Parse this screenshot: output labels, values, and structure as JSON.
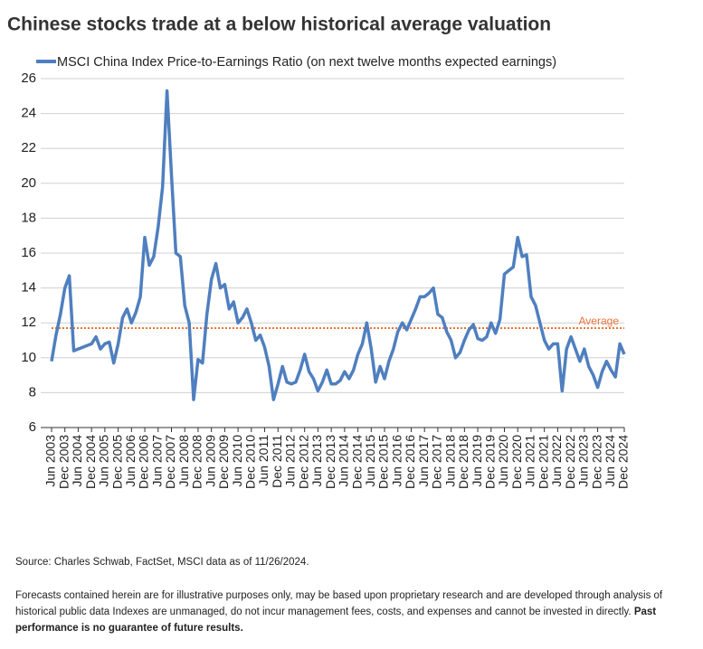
{
  "chart_data": {
    "type": "line",
    "title": "Chinese stocks trade at a below historical average valuation",
    "categories": [
      "Jun 2003",
      null,
      null,
      "Dec 2003",
      null,
      null,
      "Jun 2004",
      null,
      null,
      "Dec 2004",
      null,
      null,
      "Jun 2005",
      null,
      null,
      "Dec 2005",
      null,
      null,
      "Jun 2006",
      null,
      null,
      "Dec 2006",
      null,
      null,
      "Jun 2007",
      null,
      null,
      "Dec 2007",
      null,
      null,
      "Jun 2008",
      null,
      null,
      "Dec 2008",
      null,
      null,
      "Jun 2009",
      null,
      null,
      "Dec 2009",
      null,
      null,
      "Jun 2010",
      null,
      null,
      "Dec 2010",
      null,
      null,
      "Jun 2011",
      null,
      null,
      "Dec 2011",
      null,
      null,
      "Jun 2012",
      null,
      null,
      "Dec 2012",
      null,
      null,
      "Jun 2013",
      null,
      null,
      "Dec 2013",
      null,
      null,
      "Jun 2014",
      null,
      null,
      "Dec 2014",
      null,
      null,
      "Jun 2015",
      null,
      null,
      "Dec 2015",
      null,
      null,
      "Jun 2016",
      null,
      null,
      "Dec 2016",
      null,
      null,
      "Jun 2017",
      null,
      null,
      "Dec 2017",
      null,
      null,
      "Jun 2018",
      null,
      null,
      "Dec 2018",
      null,
      null,
      "Jun 2019",
      null,
      null,
      "Dec 2019",
      null,
      null,
      "Jun 2020",
      null,
      null,
      "Dec 2020",
      null,
      null,
      "Jun 2021",
      null,
      null,
      "Dec 2021",
      null,
      null,
      "Jun 2022",
      null,
      null,
      "Dec 2022",
      null,
      null,
      "Jun 2023",
      null,
      null,
      "Dec 2023",
      null,
      null,
      "Jun 2024",
      null,
      null,
      "Dec 2024"
    ],
    "series": [
      {
        "name": "MSCI China Index Price-to-Earnings Ratio (on next twelve months expected earnings)",
        "color": "#4f7fbf",
        "values": [
          9.8,
          11.3,
          12.5,
          14.0,
          14.7,
          10.4,
          10.5,
          10.6,
          10.7,
          10.8,
          11.2,
          10.5,
          10.8,
          10.9,
          9.7,
          10.8,
          12.3,
          12.8,
          12.0,
          12.6,
          13.5,
          16.9,
          15.3,
          15.8,
          17.5,
          19.8,
          25.3,
          20.5,
          16.0,
          15.8,
          13.0,
          12.0,
          7.6,
          9.9,
          9.7,
          12.5,
          14.5,
          15.4,
          14.0,
          14.2,
          12.8,
          13.2,
          12.0,
          12.3,
          12.8,
          12.0,
          11.0,
          11.3,
          10.6,
          9.5,
          7.6,
          8.5,
          9.5,
          8.6,
          8.5,
          8.6,
          9.3,
          10.2,
          9.2,
          8.8,
          8.1,
          8.6,
          9.3,
          8.5,
          8.5,
          8.7,
          9.2,
          8.8,
          9.3,
          10.2,
          10.8,
          12.0,
          10.5,
          8.6,
          9.5,
          8.8,
          9.8,
          10.5,
          11.5,
          12.0,
          11.6,
          12.2,
          12.8,
          13.5,
          13.5,
          13.7,
          14.0,
          12.5,
          12.3,
          11.5,
          11.0,
          10.0,
          10.3,
          11.0,
          11.6,
          11.9,
          11.1,
          11.0,
          11.2,
          12.0,
          11.4,
          12.2,
          14.8,
          15.0,
          15.2,
          16.9,
          15.8,
          15.9,
          13.5,
          13.0,
          12.0,
          11.0,
          10.5,
          10.8,
          10.8,
          8.1,
          10.5,
          11.2,
          10.5,
          9.8,
          10.5,
          9.5,
          9.0,
          8.3,
          9.2,
          9.8,
          9.3,
          8.9,
          10.8,
          10.2
        ]
      }
    ],
    "average": {
      "value": 11.7,
      "label": "Average",
      "color": "#e8743b"
    },
    "ylim": [
      6,
      26
    ],
    "yticks": [
      6,
      8,
      10,
      12,
      14,
      16,
      18,
      20,
      22,
      24,
      26
    ],
    "grid": true,
    "source": "Source: Charles Schwab, FactSet, MSCI data as of 11/26/2024.",
    "footnote": "Forecasts contained herein are for illustrative purposes only, may be based upon proprietary research and are developed through analysis of historical public data Indexes are unmanaged, do not incur management fees, costs, and expenses and cannot be invested in directly.",
    "footnote_bold": "Past performance is no guarantee of future results."
  }
}
